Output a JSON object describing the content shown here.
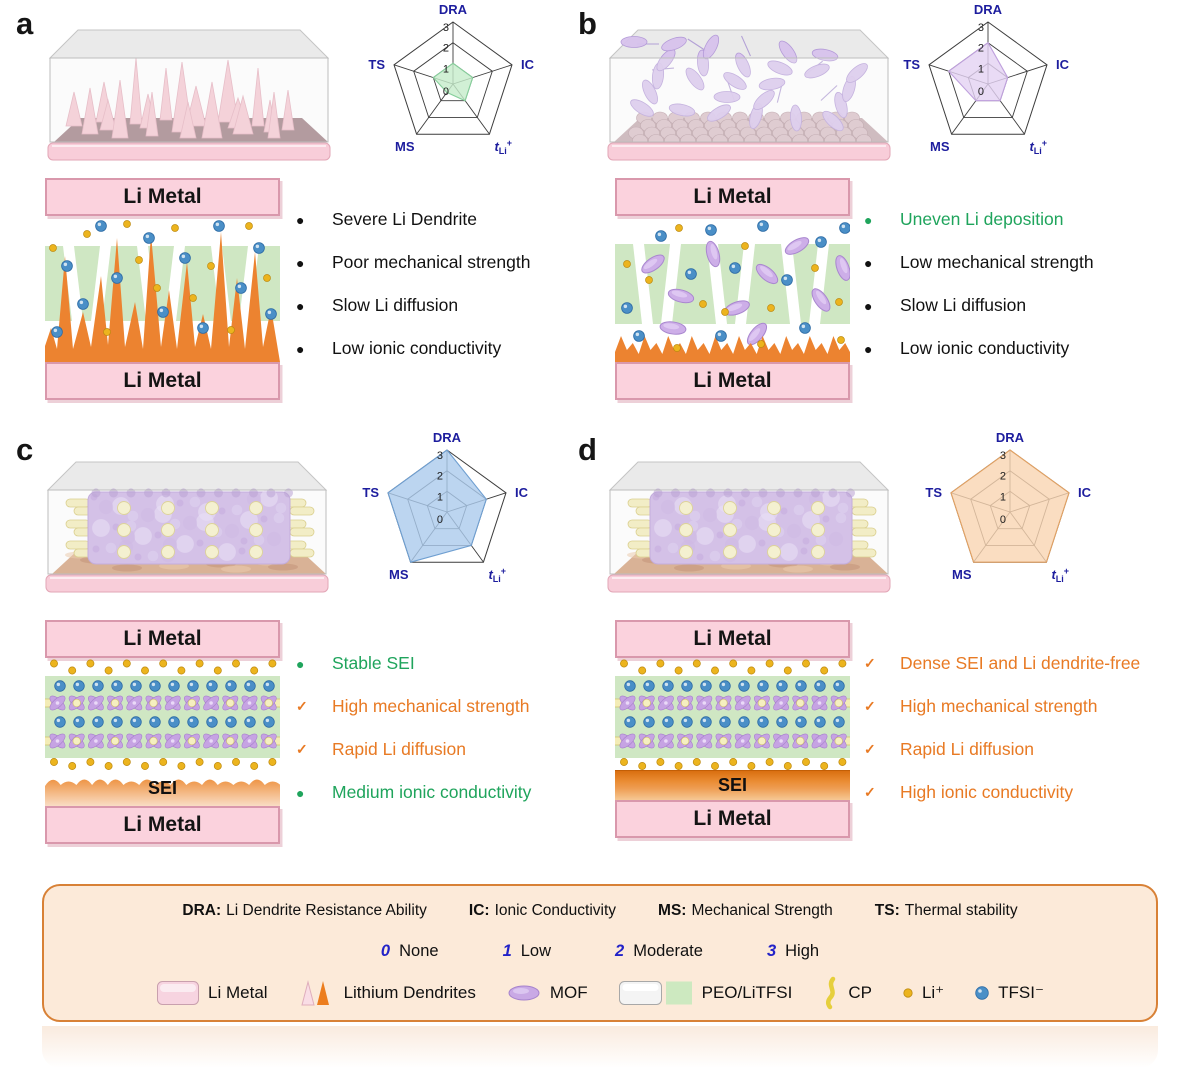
{
  "figure": {
    "panels": [
      {
        "label": "a",
        "illustration": "li-dendrite-growth-3d",
        "layers": {
          "top": "Li Metal",
          "bottom": "Li Metal"
        },
        "points": [
          {
            "marker": "●",
            "color": "#111111",
            "text": "Severe Li Dendrite"
          },
          {
            "marker": "●",
            "color": "#111111",
            "text": "Poor mechanical strength"
          },
          {
            "marker": "●",
            "color": "#111111",
            "text": "Slow Li diffusion"
          },
          {
            "marker": "●",
            "color": "#111111",
            "text": "Low ionic conductivity"
          }
        ]
      },
      {
        "label": "b",
        "illustration": "scattered-mof-flakes-3d",
        "layers": {
          "top": "Li Metal",
          "bottom": "Li Metal"
        },
        "points": [
          {
            "marker": "●",
            "color": "#1fa45c",
            "text": "Uneven Li deposition"
          },
          {
            "marker": "●",
            "color": "#111111",
            "text": "Low mechanical strength"
          },
          {
            "marker": "●",
            "color": "#111111",
            "text": "Slow Li diffusion"
          },
          {
            "marker": "●",
            "color": "#111111",
            "text": "Low ionic conductivity"
          }
        ]
      },
      {
        "label": "c",
        "illustration": "mof-cp-membrane-3d",
        "layers": {
          "top": "Li Metal",
          "bottom": "Li Metal",
          "sei": "SEI"
        },
        "points": [
          {
            "marker": "●",
            "color": "#1fa45c",
            "text": "Stable SEI"
          },
          {
            "marker": "✓",
            "color": "#e87a24",
            "text": "High mechanical strength"
          },
          {
            "marker": "✓",
            "color": "#e87a24",
            "text": "Rapid Li diffusion"
          },
          {
            "marker": "●",
            "color": "#1fa45c",
            "text": "Medium ionic conductivity"
          }
        ]
      },
      {
        "label": "d",
        "illustration": "mof-cp-membrane-dense-sei-3d",
        "layers": {
          "top": "Li Metal",
          "bottom": "Li Metal",
          "sei": "SEI"
        },
        "points": [
          {
            "marker": "✓",
            "color": "#e87a24",
            "text": "Dense SEI and Li dendrite-free"
          },
          {
            "marker": "✓",
            "color": "#e87a24",
            "text": "High mechanical strength"
          },
          {
            "marker": "✓",
            "color": "#e87a24",
            "text": "Rapid Li diffusion"
          },
          {
            "marker": "✓",
            "color": "#e87a24",
            "text": "High ionic conductivity"
          }
        ]
      }
    ],
    "legend": {
      "definitions": [
        {
          "abbr": "DRA:",
          "meaning": "Li Dendrite Resistance Ability"
        },
        {
          "abbr": "IC:",
          "meaning": "Ionic Conductivity"
        },
        {
          "abbr": "MS:",
          "meaning": "Mechanical Strength"
        },
        {
          "abbr": "TS:",
          "meaning": "Thermal stability"
        }
      ],
      "scale": [
        {
          "value": "0",
          "label": "None"
        },
        {
          "value": "1",
          "label": "Low"
        },
        {
          "value": "2",
          "label": "Moderate"
        },
        {
          "value": "3",
          "label": "High"
        }
      ],
      "symbols": [
        {
          "icon": "li-metal-swatch",
          "label": "Li Metal"
        },
        {
          "icon": "lithium-dendrites-icon",
          "label": "Lithium Dendrites"
        },
        {
          "icon": "mof-icon",
          "label": "MOF"
        },
        {
          "icon": "peo-litfsi-swatch",
          "label": "PEO/LiTFSI"
        },
        {
          "icon": "cp-icon",
          "label": "CP"
        },
        {
          "icon": "li-ion-icon",
          "label": "Li⁺"
        },
        {
          "icon": "tfsi-ion-icon",
          "label": "TFSI⁻"
        }
      ]
    },
    "colors": {
      "radar_label": "#1d1d9e",
      "green_text": "#1fa45c",
      "orange_text": "#e87a24",
      "li_metal_fill": "#fbd2dd",
      "electrolyte_fill": "#cfe7c3",
      "dendrite_orange": "#ec8330",
      "mof_purple": "#cdaee8",
      "legend_box_fill": "#fcead9",
      "legend_box_border": "#d88136"
    }
  },
  "chart_data": [
    {
      "type": "radar",
      "panel": "a",
      "axes": [
        {
          "id": "DRA",
          "label": "DRA"
        },
        {
          "id": "IC",
          "label": "IC"
        },
        {
          "id": "tLi",
          "label": "t_Li+"
        },
        {
          "id": "MS",
          "label": "MS"
        },
        {
          "id": "TS",
          "label": "TS"
        }
      ],
      "values": [
        1,
        1,
        1,
        0.5,
        1
      ],
      "range": [
        0,
        3
      ],
      "ticks": [
        "0",
        "1",
        "2",
        "3"
      ],
      "fill": "#c5ecca",
      "stroke": "#86cf9b"
    },
    {
      "type": "radar",
      "panel": "b",
      "axes": [
        {
          "id": "DRA",
          "label": "DRA"
        },
        {
          "id": "IC",
          "label": "IC"
        },
        {
          "id": "tLi",
          "label": "t_Li+"
        },
        {
          "id": "MS",
          "label": "MS"
        },
        {
          "id": "TS",
          "label": "TS"
        }
      ],
      "values": [
        2,
        1,
        1,
        1,
        2
      ],
      "range": [
        0,
        3
      ],
      "ticks": [
        "0",
        "1",
        "2",
        "3"
      ],
      "fill": "#e4d2f3",
      "stroke": "#bfa0dd"
    },
    {
      "type": "radar",
      "panel": "c",
      "axes": [
        {
          "id": "DRA",
          "label": "DRA"
        },
        {
          "id": "IC",
          "label": "IC"
        },
        {
          "id": "tLi",
          "label": "t_Li+"
        },
        {
          "id": "MS",
          "label": "MS"
        },
        {
          "id": "TS",
          "label": "TS"
        }
      ],
      "values": [
        3,
        2,
        2,
        3,
        3
      ],
      "range": [
        0,
        3
      ],
      "ticks": [
        "0",
        "1",
        "2",
        "3"
      ],
      "fill": "#abcbec",
      "stroke": "#6f9fd1"
    },
    {
      "type": "radar",
      "panel": "d",
      "axes": [
        {
          "id": "DRA",
          "label": "DRA"
        },
        {
          "id": "IC",
          "label": "IC"
        },
        {
          "id": "tLi",
          "label": "t_Li+"
        },
        {
          "id": "MS",
          "label": "MS"
        },
        {
          "id": "TS",
          "label": "TS"
        }
      ],
      "values": [
        3,
        3,
        3,
        3,
        3
      ],
      "range": [
        0,
        3
      ],
      "ticks": [
        "0",
        "1",
        "2",
        "3"
      ],
      "fill": "#f9d4b2",
      "stroke": "#e3a263"
    }
  ]
}
